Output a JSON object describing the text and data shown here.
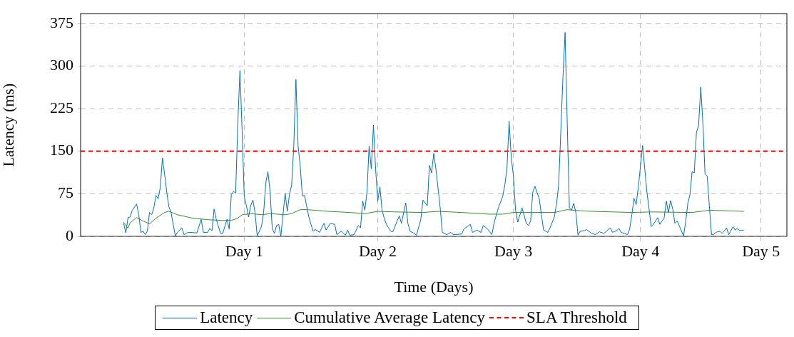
{
  "chart_data": {
    "type": "line",
    "xlabel": "Time (Days)",
    "ylabel": "Latency (ms)",
    "categories": [
      null,
      null,
      null,
      null,
      null,
      null,
      null,
      null,
      null,
      null,
      null,
      null,
      null,
      null,
      null,
      null,
      null,
      null,
      null,
      null,
      null,
      null,
      null,
      null,
      null,
      null,
      null,
      null,
      null,
      null,
      null,
      null,
      null,
      null,
      null,
      null,
      null,
      null,
      null,
      null,
      null,
      null,
      null,
      null,
      null,
      null,
      null,
      null,
      null,
      null,
      null,
      null,
      null,
      null,
      null,
      null,
      null,
      null,
      null,
      null,
      null,
      null,
      null,
      null,
      null,
      null,
      null,
      null,
      null,
      null,
      null,
      null,
      null,
      null,
      null,
      null,
      "Day 1",
      null,
      null,
      null,
      null,
      null,
      null,
      null,
      null,
      null,
      null,
      null,
      null,
      null,
      null,
      null,
      null,
      null,
      null,
      null,
      null,
      null,
      null,
      null,
      null,
      null,
      null,
      null,
      null,
      null,
      null,
      null,
      null,
      null,
      null,
      null,
      null,
      null,
      null,
      null,
      null,
      null,
      null,
      null,
      null,
      null,
      null,
      null,
      null,
      null,
      null,
      null,
      null,
      null,
      null,
      null,
      null,
      null,
      null,
      null,
      null,
      null,
      "Day 2",
      null,
      null,
      null,
      null,
      null,
      null,
      null,
      null,
      null,
      null,
      null,
      null,
      null,
      null,
      null,
      null,
      null,
      null,
      null,
      null,
      null,
      null,
      null,
      null,
      null,
      null,
      null,
      null,
      null,
      null,
      null,
      null,
      null,
      null,
      null,
      null,
      null,
      null,
      null,
      null,
      null,
      null,
      null,
      null,
      null,
      null,
      null,
      null,
      null,
      null,
      null,
      null,
      null,
      null,
      null,
      null,
      null,
      null,
      null,
      null,
      null,
      null,
      "Day 3",
      null,
      null,
      null,
      null,
      null,
      null,
      null,
      null,
      null,
      null,
      null,
      null,
      null,
      null,
      null,
      null,
      null,
      null,
      null,
      null,
      null,
      null,
      null,
      null,
      null,
      null,
      null,
      null,
      null,
      null,
      null,
      null,
      null,
      null,
      null,
      null,
      null,
      null,
      null,
      null,
      null,
      null,
      null,
      null,
      null,
      null,
      null,
      null,
      null,
      null,
      null,
      null,
      null,
      null,
      null,
      null,
      null,
      null,
      "Day 4",
      null,
      null,
      null,
      null,
      null,
      null,
      null,
      null,
      null,
      null,
      null,
      null,
      null,
      null,
      null,
      null,
      null,
      null,
      null,
      null,
      null,
      null,
      null,
      null,
      null,
      null,
      null,
      null,
      null,
      null,
      null,
      null,
      null,
      null,
      null,
      null,
      null,
      null,
      null,
      null,
      null,
      null,
      null,
      null,
      null,
      null,
      null,
      null,
      null,
      null,
      null,
      null,
      null,
      null,
      null,
      "Day 5",
      null,
      null,
      null,
      null,
      null,
      null,
      null,
      null,
      null,
      null,
      null,
      null
    ],
    "ylim": [
      0,
      392
    ],
    "yticks": [
      0,
      75,
      150,
      225,
      300,
      375
    ],
    "grid": true,
    "legend": "bottom",
    "marker": "none",
    "line_style": "solid",
    "series": [
      {
        "name": "Latency",
        "color": "#0072bd",
        "values": [
          null,
          null,
          null,
          null,
          null,
          null,
          null,
          null,
          null,
          null,
          null,
          null,
          null,
          null,
          null,
          null,
          null,
          null,
          null,
          null,
          23,
          6,
          33,
          34,
          46,
          null,
          57,
          38,
          7,
          9,
          3,
          9,
          42,
          38,
          50,
          72,
          66,
          86,
          138,
          110,
          78,
          52,
          42,
          21,
          1,
          7,
          null,
          15,
          3,
          null,
          7,
          7,
          null,
          null,
          6,
          null,
          30,
          7,
          null,
          7,
          14,
          10,
          48,
          30,
          null,
          5,
          5,
          null,
          30,
          13,
          74,
          79,
          76,
          199,
          292,
          187,
          70,
          54,
          34,
          54,
          64,
          42,
          1,
          null,
          17,
          42,
          94,
          114,
          78,
          14,
          5,
          19,
          21,
          0,
          38,
          76,
          44,
          74,
          90,
          159,
          276,
          159,
          123,
          71,
          72,
          null,
          34,
          21,
          9,
          12,
          null,
          7,
          null,
          23,
          11,
          null,
          23,
          null,
          21,
          3,
          null,
          9,
          null,
          2,
          11,
          2,
          null,
          3,
          null,
          19,
          15,
          62,
          46,
          78,
          159,
          119,
          196,
          119,
          62,
          87,
          46,
          32,
          21,
          null,
          9,
          8,
          null,
          27,
          36,
          23,
          null,
          59,
          23,
          9,
          null,
          5,
          2,
          null,
          30,
          64,
          null,
          54,
          125,
          112,
          146,
          119,
          null,
          50,
          7,
          null,
          3,
          null,
          7,
          3,
          null,
          null,
          null,
          4,
          13,
          null,
          null,
          21,
          7,
          null,
          11,
          null,
          7,
          19,
          null,
          13,
          null,
          3,
          23,
          null,
          50,
          null,
          70,
          90,
          119,
          203,
          139,
          106,
          46,
          25,
          null,
          50,
          null,
          23,
          19,
          27,
          78,
          88,
          null,
          66,
          38,
          11,
          null,
          7,
          15,
          null,
          34,
          56,
          90,
          183,
          280,
          359,
          199,
          50,
          46,
          58,
          42,
          2,
          9,
          null,
          10,
          12,
          null,
          6,
          null,
          3,
          null,
          8,
          null,
          5,
          null,
          null,
          15,
          7,
          null,
          10,
          14,
          7,
          null,
          null,
          3,
          13,
          38,
          67,
          56,
          86,
          123,
          160,
          119,
          78,
          48,
          17,
          21,
          null,
          33,
          21,
          27,
          32,
          62,
          42,
          63,
          48,
          23,
          27,
          19,
          null,
          1,
          25,
          58,
          74,
          114,
          112,
          183,
          195,
          263,
          199,
          110,
          106,
          54,
          3,
          3,
          7,
          null,
          9,
          5,
          null,
          15,
          3,
          null,
          17,
          11,
          14,
          10,
          null,
          11,
          null,
          null,
          null,
          null,
          null,
          null,
          null,
          null,
          null,
          null,
          null,
          null,
          null,
          null,
          null,
          null,
          null,
          null,
          null,
          null
        ]
      },
      {
        "name": "Cumulative Average Latency",
        "color": "#3a8a2e",
        "values": [
          null,
          null,
          null,
          null,
          null,
          null,
          null,
          null,
          null,
          null,
          null,
          null,
          null,
          null,
          null,
          null,
          null,
          null,
          null,
          null,
          25,
          null,
          14,
          24,
          null,
          null,
          33,
          null,
          null,
          27,
          null,
          null,
          22,
          null,
          null,
          32,
          null,
          null,
          null,
          42,
          null,
          44,
          null,
          null,
          null,
          38,
          null,
          null,
          null,
          null,
          null,
          null,
          32,
          null,
          null,
          null,
          null,
          null,
          null,
          null,
          29,
          null,
          null,
          null,
          null,
          null,
          28,
          null,
          null,
          null,
          28,
          null,
          null,
          32,
          null,
          38,
          null,
          null,
          null,
          40,
          null,
          null,
          null,
          null,
          38,
          null,
          null,
          null,
          40,
          null,
          null,
          null,
          null,
          null,
          null,
          38,
          null,
          null,
          40,
          null,
          null,
          null,
          47,
          null,
          null,
          47,
          null,
          null,
          null,
          null,
          null,
          null,
          null,
          null,
          null,
          44,
          null,
          null,
          null,
          null,
          null,
          null,
          null,
          null,
          null,
          42,
          null,
          null,
          null,
          null,
          null,
          null,
          40,
          null,
          null,
          null,
          null,
          null,
          44,
          null,
          null,
          null,
          null,
          null,
          null,
          null,
          43,
          null,
          null,
          null,
          null,
          null,
          null,
          null,
          null,
          null,
          null,
          null,
          null,
          42,
          null,
          null,
          null,
          null,
          null,
          null,
          44,
          null,
          null,
          null,
          null,
          null,
          null,
          null,
          null,
          null,
          null,
          42,
          null,
          null,
          null,
          null,
          null,
          null,
          null,
          null,
          null,
          null,
          null,
          null,
          39,
          null,
          null,
          null,
          null,
          null,
          39,
          null,
          null,
          null,
          null,
          42,
          null,
          null,
          null,
          null,
          null,
          null,
          null,
          null,
          null,
          null,
          null,
          null,
          null,
          null,
          null,
          null,
          null,
          null,
          42,
          null,
          null,
          null,
          null,
          null,
          47,
          null,
          null,
          null,
          null,
          null,
          45,
          null,
          null,
          null,
          null,
          null,
          44,
          null,
          null,
          null,
          null,
          null,
          null,
          null,
          null,
          null,
          null,
          null,
          null,
          null,
          null,
          null,
          null,
          null,
          42,
          null,
          null,
          null,
          null,
          null,
          null,
          null,
          null,
          43,
          null,
          null,
          null,
          null,
          null,
          null,
          null,
          null,
          null,
          null,
          null,
          null,
          null,
          null,
          null,
          null,
          null,
          null,
          42,
          null,
          null,
          null,
          null,
          null,
          null,
          null,
          46,
          null,
          null,
          null,
          null,
          null,
          null,
          null,
          null,
          null,
          null,
          null,
          null,
          null,
          null,
          null,
          44,
          null,
          null,
          null,
          null,
          null,
          null,
          null,
          null,
          null,
          null,
          null,
          null,
          null,
          null,
          null,
          null,
          null,
          null,
          null,
          null
        ]
      }
    ],
    "ref_lines": [
      {
        "axis": "y",
        "value": 150,
        "label": "SLA Threshold",
        "color": "#ff0000",
        "line_style": "dashed"
      }
    ]
  }
}
